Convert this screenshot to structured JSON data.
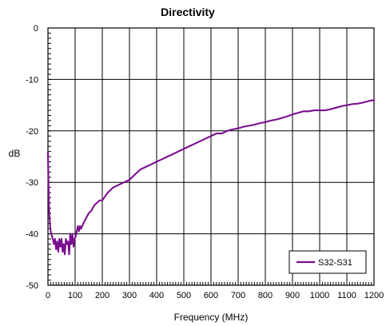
{
  "chart_data": {
    "type": "line",
    "title": "Directivity",
    "xlabel": "Frequency (MHz)",
    "ylabel": "dB",
    "xlim": [
      0,
      1200
    ],
    "ylim": [
      -50,
      0
    ],
    "x_ticks": [
      0,
      100,
      200,
      300,
      400,
      500,
      600,
      700,
      800,
      900,
      1000,
      1100,
      1200
    ],
    "y_ticks": [
      0,
      -10,
      -20,
      -30,
      -40,
      -50
    ],
    "x_tick_labels": [
      "0",
      "100",
      "200",
      "300",
      "400",
      "500",
      "600",
      "700",
      "800",
      "900",
      "1000",
      "1100",
      "1200"
    ],
    "y_tick_labels": [
      "0",
      "-10",
      "-20",
      "-30",
      "-40",
      "-50"
    ],
    "grid": true,
    "legend": {
      "position": "bottom-right"
    },
    "series": [
      {
        "name": "S32-S31",
        "color": "#7a0f8f",
        "x": [
          0,
          2,
          4,
          6,
          8,
          10,
          12,
          15,
          18,
          22,
          26,
          30,
          34,
          38,
          42,
          46,
          50,
          54,
          58,
          62,
          66,
          70,
          74,
          78,
          82,
          86,
          90,
          94,
          98,
          102,
          106,
          110,
          114,
          118,
          122,
          126,
          130,
          140,
          150,
          160,
          170,
          180,
          190,
          200,
          220,
          240,
          260,
          280,
          300,
          320,
          340,
          360,
          380,
          400,
          420,
          440,
          460,
          480,
          500,
          520,
          540,
          560,
          580,
          600,
          620,
          640,
          660,
          680,
          700,
          720,
          740,
          760,
          780,
          800,
          820,
          840,
          860,
          880,
          900,
          920,
          940,
          960,
          980,
          1000,
          1020,
          1040,
          1060,
          1080,
          1100,
          1120,
          1140,
          1160,
          1180,
          1200
        ],
        "values": [
          -24,
          -30,
          -35,
          -37,
          -38.5,
          -39.5,
          -40,
          -40.5,
          -41,
          -42,
          -41,
          -43,
          -41.5,
          -43.5,
          -41,
          -42.5,
          -41,
          -43.5,
          -42,
          -44,
          -41,
          -42,
          -41.5,
          -44,
          -40,
          -42,
          -40,
          -42.5,
          -41,
          -40.5,
          -39.5,
          -38.5,
          -39.5,
          -38.5,
          -39,
          -38.5,
          -38,
          -37,
          -36,
          -35.5,
          -34.5,
          -34,
          -33.5,
          -33.5,
          -32,
          -31,
          -30.5,
          -30,
          -29.5,
          -28.5,
          -27.5,
          -27,
          -26.5,
          -26,
          -25.5,
          -25,
          -24.5,
          -24,
          -23.5,
          -23,
          -22.5,
          -22,
          -21.5,
          -21,
          -20.5,
          -20.5,
          -20,
          -19.7,
          -19.5,
          -19.2,
          -19,
          -18.8,
          -18.5,
          -18.3,
          -18,
          -17.8,
          -17.5,
          -17.2,
          -16.8,
          -16.5,
          -16.2,
          -16.2,
          -16,
          -16,
          -16,
          -15.8,
          -15.5,
          -15.2,
          -15,
          -14.8,
          -14.7,
          -14.5,
          -14.2,
          -14
        ]
      }
    ]
  }
}
